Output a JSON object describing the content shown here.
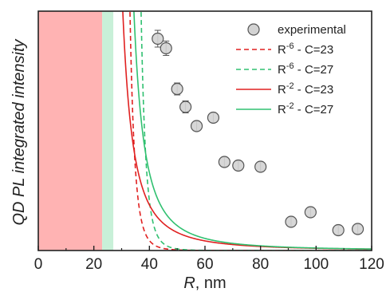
{
  "chart_data": {
    "type": "scatter",
    "ylabel": "QD PL integrated intensity",
    "xlabel_italic": "R",
    "xlabel_unit": ", nm",
    "xlim": [
      0,
      120
    ],
    "ylim": [
      0,
      1.0
    ],
    "x_ticks": [
      0,
      20,
      40,
      60,
      80,
      100,
      120
    ],
    "x_tick_labels": [
      "0",
      "20",
      "40",
      "60",
      "80",
      "100",
      "120"
    ],
    "shaded_regions": [
      {
        "x_range": [
          0,
          23
        ],
        "color": "#ffb3b3"
      },
      {
        "x_range": [
          23,
          27
        ],
        "color": "#c8f0d8"
      }
    ],
    "experimental": {
      "name": "experimental",
      "x": [
        43,
        46,
        50,
        53,
        57,
        63,
        67,
        72,
        80,
        91,
        98,
        108,
        115
      ],
      "y": [
        0.885,
        0.845,
        0.675,
        0.6,
        0.52,
        0.555,
        0.37,
        0.355,
        0.35,
        0.12,
        0.16,
        0.085,
        0.09
      ],
      "yerr": [
        0.035,
        0.03,
        0.025,
        0.025,
        0.02,
        0.02,
        0.02,
        0.02,
        0.02,
        0.02,
        0.02,
        0.02,
        0.02
      ]
    },
    "series": [
      {
        "name": "R⁻⁶ - C=23",
        "label_base": "R",
        "label_exp": "-6",
        "label_suffix": " - C=23",
        "exponent": 6,
        "C": 23,
        "color": "#e02020",
        "dash": true
      },
      {
        "name": "R⁻⁶ - C=27",
        "label_base": "R",
        "label_exp": "-6",
        "label_suffix": " - C=27",
        "exponent": 6,
        "C": 27,
        "color": "#30c070",
        "dash": true
      },
      {
        "name": "R⁻² - C=23",
        "label_base": "R",
        "label_exp": "-2",
        "label_suffix": " - C=23",
        "exponent": 2,
        "C": 23,
        "color": "#e02020",
        "dash": false
      },
      {
        "name": "R⁻² - C=27",
        "label_base": "R",
        "label_exp": "-2",
        "label_suffix": " - C=27",
        "exponent": 2,
        "C": 27,
        "color": "#30c070",
        "dash": false
      }
    ],
    "legend_position": "top-right",
    "colors": {
      "marker_fill": "#d3d3d3",
      "marker_edge": "#555555",
      "axis": "#222222"
    }
  }
}
